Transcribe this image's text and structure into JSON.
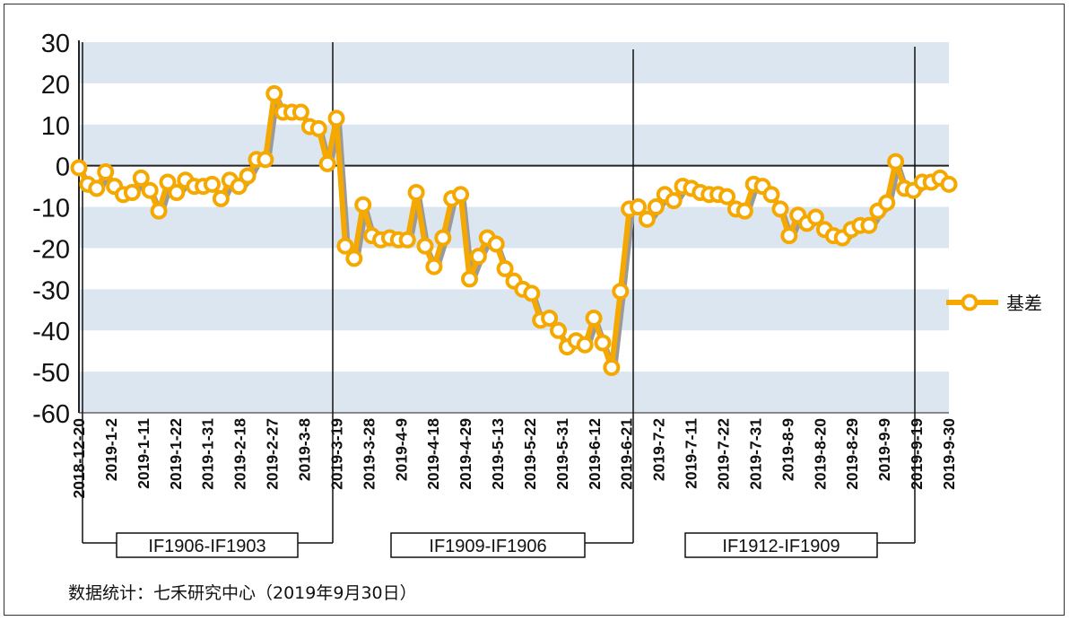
{
  "chart_data": {
    "type": "line",
    "ylim": [
      -60,
      30
    ],
    "yticks": [
      30,
      20,
      10,
      0,
      -10,
      -20,
      -30,
      -40,
      -50,
      -60
    ],
    "ytick_labels": [
      "30",
      "20",
      "10",
      "0",
      "-10",
      "-20",
      "-30",
      "-40",
      "-50",
      "-60"
    ],
    "grid": "alternating horizontal bands",
    "legend_position": "right",
    "colors": {
      "line": "#f5a800",
      "marker_fill": "#ffffff",
      "band": "#dce6f0",
      "axis": "#222222"
    },
    "x_tick_labels": [
      "2018-12-20",
      "2019-1-2",
      "2019-1-11",
      "2019-1-22",
      "2019-1-31",
      "2019-2-18",
      "2019-2-27",
      "2019-3-8",
      "2019-3-19",
      "2019-3-28",
      "2019-4-9",
      "2019-4-18",
      "2019-4-29",
      "2019-5-13",
      "2019-5-22",
      "2019-5-31",
      "2019-6-12",
      "2019-6-21",
      "2019-7-2",
      "2019-7-11",
      "2019-7-22",
      "2019-7-31",
      "2019-8-9",
      "2019-8-20",
      "2019-8-29",
      "2019-9-9",
      "2019-9-19",
      "2019-9-30"
    ],
    "series": [
      {
        "name": "基差",
        "values": [
          -0.5,
          -4.5,
          -5.5,
          -1.5,
          -5,
          -7,
          -6.5,
          -3,
          -6,
          -11,
          -4,
          -6.5,
          -3.5,
          -5,
          -5,
          -4.5,
          -8,
          -3.5,
          -5,
          -2.5,
          1.5,
          1.5,
          17.5,
          13,
          13,
          13,
          9.5,
          9,
          0.5,
          11.5,
          -19.5,
          -22.5,
          -9.5,
          -17,
          -18,
          -17.5,
          -18,
          -18,
          -6.5,
          -19.5,
          -24.5,
          -17.5,
          -8,
          -7,
          -27.5,
          -22,
          -17.5,
          -19,
          -25,
          -28,
          -30,
          -31,
          -37.5,
          -37,
          -40,
          -44,
          -42.5,
          -43.5,
          -37,
          -43,
          -49,
          -30.5,
          -10.5,
          -10,
          -13,
          -10,
          -7,
          -8.5,
          -5,
          -5.5,
          -6.5,
          -7,
          -7,
          -7.5,
          -10.5,
          -11,
          -4.5,
          -5,
          -7,
          -10.5,
          -17,
          -12,
          -14,
          -12.5,
          -15.5,
          -17,
          -17.5,
          -15.5,
          -14.5,
          -14.5,
          -11,
          -9,
          1,
          -5.5,
          -6,
          -4,
          -4,
          -3,
          -4.5
        ]
      }
    ],
    "contract_labels": [
      "IF1906-IF1903",
      "IF1909-IF1906",
      "IF1912-IF1909"
    ]
  },
  "source_note": "数据统计：七禾研究中心（2019年9月30日）"
}
